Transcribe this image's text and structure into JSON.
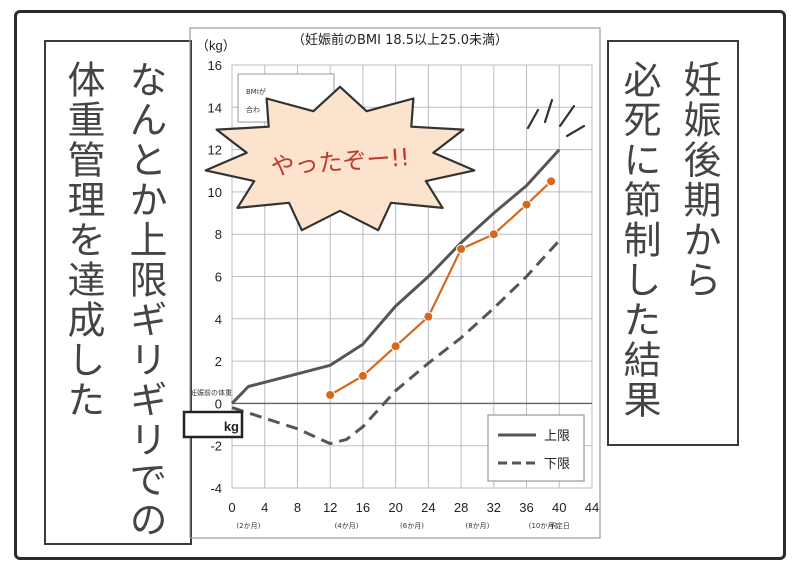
{
  "left_panel": {
    "lines": [
      "なんとか上限ギリギリでの",
      "体重管理を達成した"
    ]
  },
  "right_panel": {
    "lines": [
      "妊娠後期から",
      "必死に節制した結果"
    ]
  },
  "speech_bubble": {
    "text": "やったぞー!!"
  },
  "hidden_box": {
    "line1": "BMIが",
    "line2": "合わ"
  },
  "chart_data": {
    "type": "line",
    "title": "（妊娠前のBMI 18.5以上25.0未満）",
    "ylabel": "（kg）",
    "xlabel": "",
    "xlim": [
      0,
      44
    ],
    "ylim": [
      -4,
      16
    ],
    "x_ticks": [
      0,
      4,
      8,
      12,
      16,
      20,
      24,
      28,
      32,
      36,
      40,
      44
    ],
    "y_ticks": [
      16,
      14,
      12,
      10,
      8,
      6,
      4,
      2,
      0,
      -2,
      -4
    ],
    "month_labels": [
      {
        "x": 2,
        "text": "(2か月)"
      },
      {
        "x": 14,
        "text": "(4か月)"
      },
      {
        "x": 22,
        "text": "(6か月)"
      },
      {
        "x": 30,
        "text": "(8か月)"
      },
      {
        "x": 38,
        "text": "(10か月)"
      }
    ],
    "due_label": {
      "x": 40,
      "text": "予定日"
    },
    "baseline_label": "妊娠前の体重",
    "baseline_unit": "kg",
    "grid": true,
    "legend_position": "bottom-right",
    "series": [
      {
        "name": "上限",
        "style": "solid",
        "color": "#555555",
        "points": [
          [
            0,
            0
          ],
          [
            2,
            0.8
          ],
          [
            4,
            1
          ],
          [
            8,
            1.4
          ],
          [
            12,
            1.8
          ],
          [
            16,
            2.8
          ],
          [
            20,
            4.6
          ],
          [
            24,
            6
          ],
          [
            28,
            7.6
          ],
          [
            32,
            9
          ],
          [
            36,
            10.3
          ],
          [
            40,
            12
          ]
        ]
      },
      {
        "name": "下限",
        "style": "dashed",
        "color": "#555555",
        "points": [
          [
            0,
            -0.2
          ],
          [
            4,
            -0.7
          ],
          [
            8,
            -1.2
          ],
          [
            12,
            -1.9
          ],
          [
            14,
            -1.7
          ],
          [
            16,
            -1.1
          ],
          [
            20,
            0.6
          ],
          [
            24,
            1.9
          ],
          [
            28,
            3.1
          ],
          [
            32,
            4.5
          ],
          [
            36,
            6
          ],
          [
            40,
            7.7
          ]
        ]
      },
      {
        "name": "",
        "style": "markers",
        "color": "#d2691e",
        "points": [
          [
            12,
            0.4
          ],
          [
            16,
            1.3
          ],
          [
            20,
            2.7
          ],
          [
            24,
            4.1
          ],
          [
            28,
            7.3
          ],
          [
            32,
            8
          ],
          [
            36,
            9.4
          ],
          [
            39,
            10.5
          ]
        ]
      }
    ]
  },
  "colors": {
    "frame": "#2b2b2b",
    "measured": "#d2691e",
    "bubble_fill": "#fbe3cd",
    "due_label": "#d9472b"
  }
}
